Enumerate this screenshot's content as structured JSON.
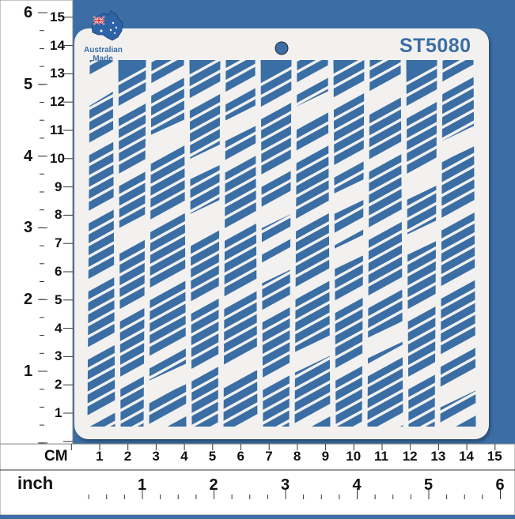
{
  "product_code": "ST5080",
  "badge": {
    "line1": "Australian",
    "line2": "Made",
    "icon": "australia-map-flag-icon"
  },
  "ruler": {
    "cm_unit": "CM",
    "inch_unit": "inch",
    "vertical_cm": [
      "1",
      "2",
      "3",
      "4",
      "5",
      "6",
      "7",
      "8",
      "9",
      "10",
      "11",
      "12",
      "13",
      "14",
      "15"
    ],
    "vertical_inch": [
      "1",
      "2",
      "3",
      "4",
      "5",
      "6"
    ],
    "horizontal_cm": [
      "1",
      "2",
      "3",
      "4",
      "5",
      "6",
      "7",
      "8",
      "9",
      "10",
      "11",
      "12",
      "13",
      "14",
      "15"
    ],
    "horizontal_inch": [
      "1",
      "2",
      "3",
      "4",
      "5",
      "6"
    ]
  },
  "colors": {
    "background": "#3a6ea5",
    "stencil": "#f2f1ef",
    "ruler": "#ffffff"
  }
}
